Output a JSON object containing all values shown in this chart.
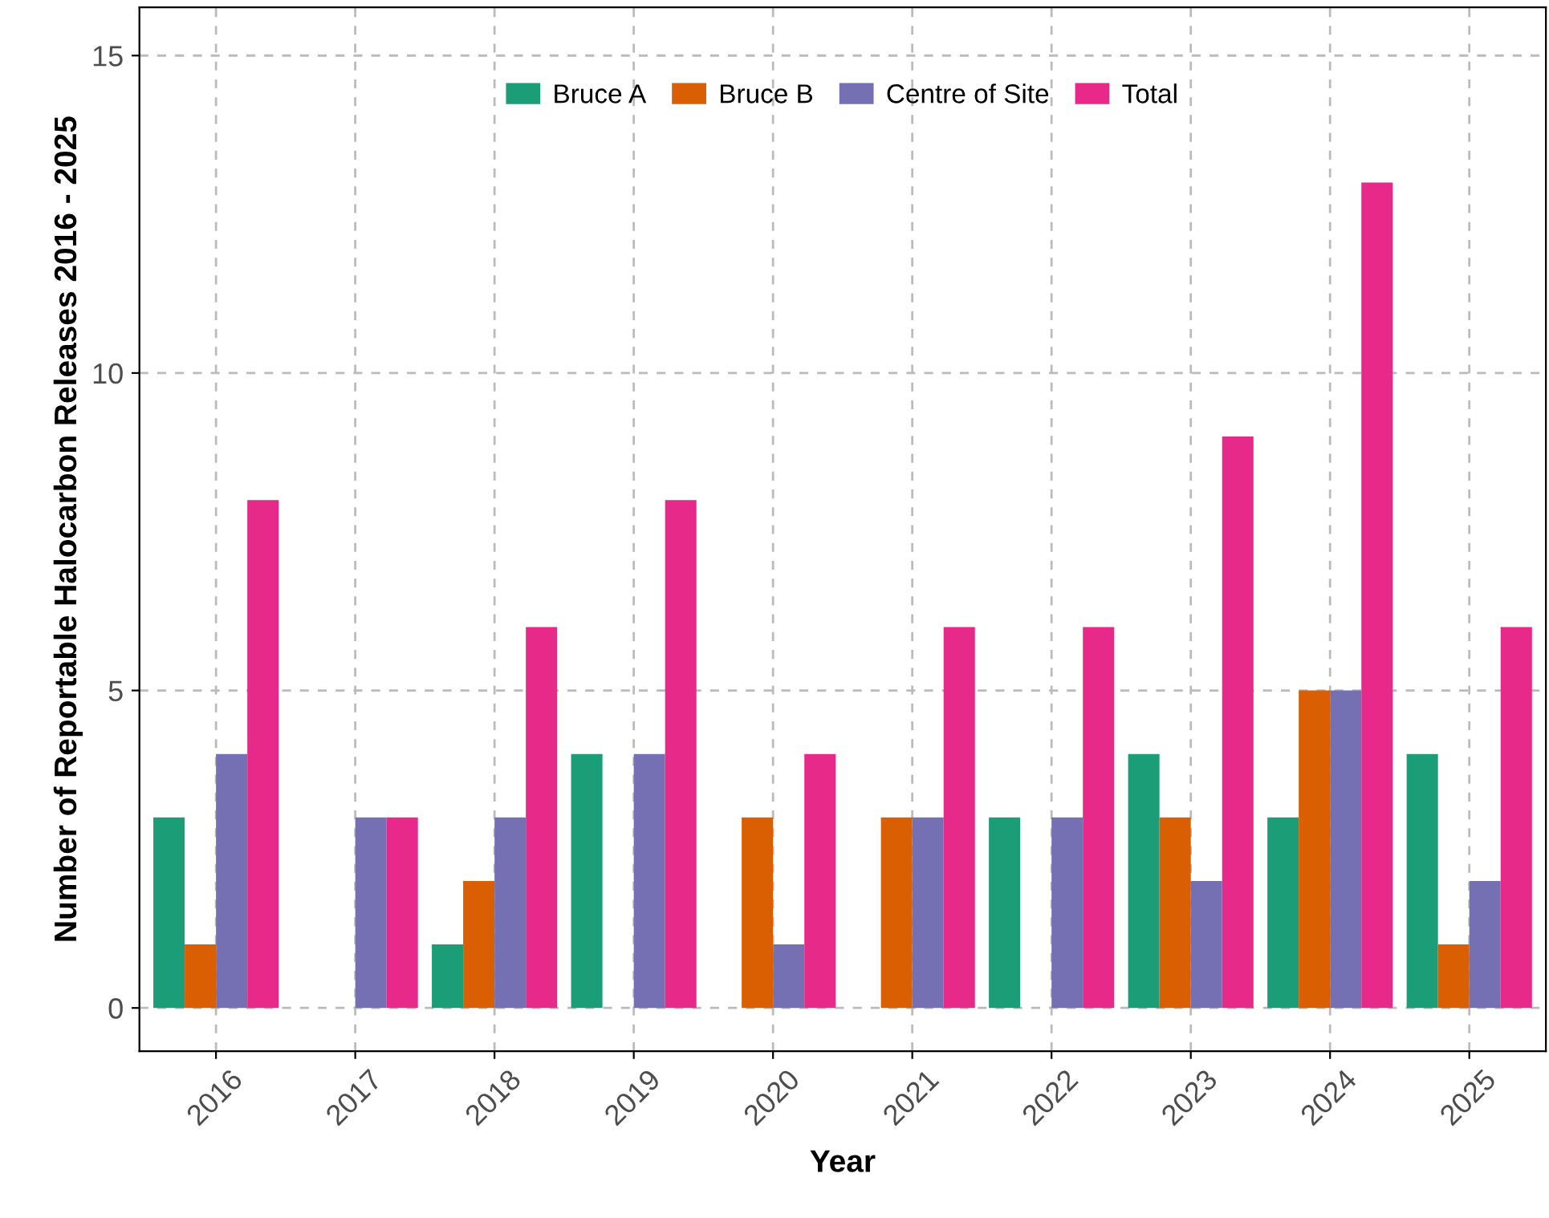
{
  "chart_data": {
    "type": "bar",
    "xlabel": "Year",
    "ylabel": "Number of Reportable Halocarbon Releases 2016 - 2025",
    "categories": [
      "2016",
      "2017",
      "2018",
      "2019",
      "2020",
      "2021",
      "2022",
      "2023",
      "2024",
      "2025"
    ],
    "series": [
      {
        "name": "Bruce A",
        "color": "#1b9e77",
        "values": [
          3,
          0,
          1,
          4,
          0,
          0,
          3,
          4,
          3,
          4
        ]
      },
      {
        "name": "Bruce B",
        "color": "#d95f02",
        "values": [
          1,
          0,
          2,
          0,
          3,
          3,
          0,
          3,
          5,
          1
        ]
      },
      {
        "name": "Centre of Site",
        "color": "#7570b3",
        "values": [
          4,
          3,
          3,
          4,
          1,
          3,
          3,
          2,
          5,
          2
        ]
      },
      {
        "name": "Total",
        "color": "#e7298a",
        "values": [
          8,
          3,
          6,
          8,
          4,
          6,
          6,
          9,
          13,
          6
        ]
      }
    ],
    "ylim": [
      -0.68,
      15.76
    ],
    "yticks": [
      0,
      5,
      10,
      15
    ],
    "grid": true,
    "legend": "top"
  }
}
